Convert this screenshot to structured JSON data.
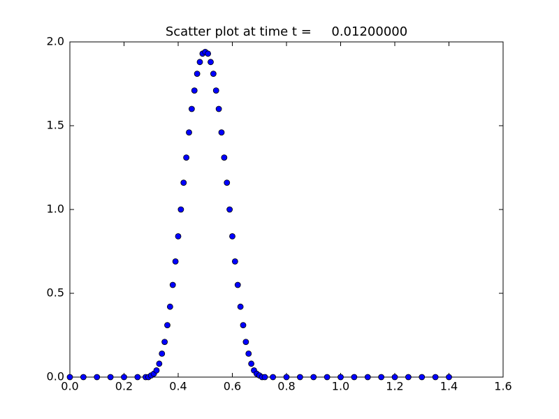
{
  "chart_data": {
    "type": "scatter",
    "title": "Scatter plot at time t =     0.01200000",
    "x": [
      0,
      0.05,
      0.1,
      0.15,
      0.2,
      0.25,
      0.28,
      0.29,
      0.3,
      0.31,
      0.32,
      0.33,
      0.34,
      0.35,
      0.36,
      0.37,
      0.38,
      0.39,
      0.4,
      0.41,
      0.42,
      0.43,
      0.44,
      0.45,
      0.46,
      0.47,
      0.48,
      0.49,
      0.5,
      0.51,
      0.52,
      0.53,
      0.54,
      0.55,
      0.56,
      0.57,
      0.58,
      0.59,
      0.6,
      0.61,
      0.62,
      0.63,
      0.64,
      0.65,
      0.66,
      0.67,
      0.68,
      0.69,
      0.7,
      0.71,
      0.72,
      0.75,
      0.8,
      0.85,
      0.9,
      0.95,
      1.0,
      1.05,
      1.1,
      1.15,
      1.2,
      1.25,
      1.3,
      1.35,
      1.4
    ],
    "values": [
      0,
      0,
      0,
      0,
      0,
      0,
      0,
      0,
      0.01,
      0.02,
      0.04,
      0.08,
      0.14,
      0.21,
      0.31,
      0.42,
      0.55,
      0.69,
      0.84,
      1.0,
      1.16,
      1.31,
      1.46,
      1.6,
      1.71,
      1.81,
      1.88,
      1.93,
      1.94,
      1.93,
      1.88,
      1.81,
      1.71,
      1.6,
      1.46,
      1.31,
      1.16,
      1.0,
      0.84,
      0.69,
      0.55,
      0.42,
      0.31,
      0.21,
      0.14,
      0.08,
      0.04,
      0.02,
      0.01,
      0,
      0,
      0,
      0,
      0,
      0,
      0,
      0,
      0,
      0,
      0,
      0,
      0,
      0,
      0,
      0
    ],
    "color": "#0000ff",
    "xlim": [
      0,
      1.6
    ],
    "xticks": [
      {
        "value": 0,
        "label": "0.0"
      },
      {
        "value": 0.2,
        "label": "0.2"
      },
      {
        "value": 0.4,
        "label": "0.4"
      },
      {
        "value": 0.6,
        "label": "0.6"
      },
      {
        "value": 0.8,
        "label": "0.8"
      },
      {
        "value": 1.0,
        "label": "1.0"
      },
      {
        "value": 1.2,
        "label": "1.2"
      },
      {
        "value": 1.4,
        "label": "1.4"
      },
      {
        "value": 1.6,
        "label": "1.6"
      }
    ],
    "ylim": [
      0,
      2
    ],
    "yticks": [
      {
        "value": 0,
        "label": "0.0"
      },
      {
        "value": 0.5,
        "label": "0.5"
      },
      {
        "value": 1.0,
        "label": "1.0"
      },
      {
        "value": 1.5,
        "label": "1.5"
      },
      {
        "value": 2.0,
        "label": "2.0"
      }
    ],
    "grid": false
  }
}
